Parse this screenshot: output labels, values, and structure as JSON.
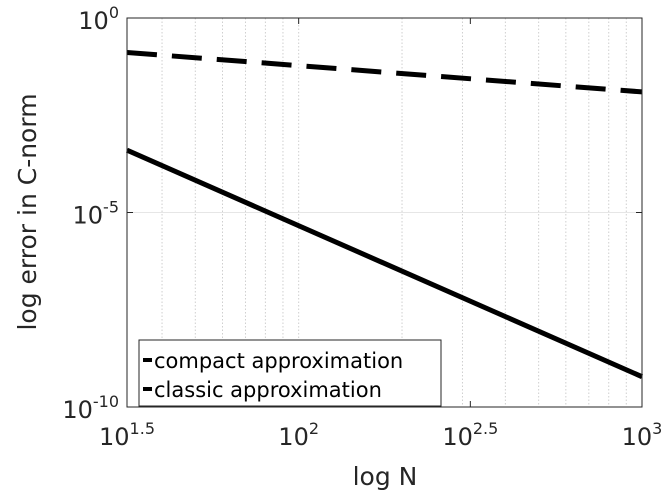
{
  "chart_data": {
    "type": "line",
    "title": "",
    "xlabel": "log N",
    "ylabel": "log error in C-norm",
    "x_scale": "log",
    "y_scale": "log",
    "xlim": [
      31.6228,
      1000
    ],
    "ylim": [
      1e-10,
      1
    ],
    "grid": "minor-x dotted",
    "legend_position": "bottom-left",
    "x_ticks": [
      {
        "base": "10",
        "exp": "1.5",
        "value": 31.6228
      },
      {
        "base": "10",
        "exp": "2",
        "value": 100
      },
      {
        "base": "10",
        "exp": "2.5",
        "value": 316.228
      },
      {
        "base": "10",
        "exp": "3",
        "value": 1000
      }
    ],
    "y_ticks": [
      {
        "base": "10",
        "exp": "0",
        "value": 1
      },
      {
        "base": "10",
        "exp": "-5",
        "value": 1e-05
      },
      {
        "base": "10",
        "exp": "-10",
        "value": 1e-10
      }
    ],
    "series": [
      {
        "name": "compact approximation",
        "style": "solid",
        "color": "#000000",
        "x": [
          31.6228,
          1000
        ],
        "y": [
          0.0004,
          6e-10
        ]
      },
      {
        "name": "classic approximation",
        "style": "dashed",
        "color": "#000000",
        "x": [
          31.6228,
          1000
        ],
        "y": [
          0.13,
          0.0126
        ]
      }
    ]
  }
}
